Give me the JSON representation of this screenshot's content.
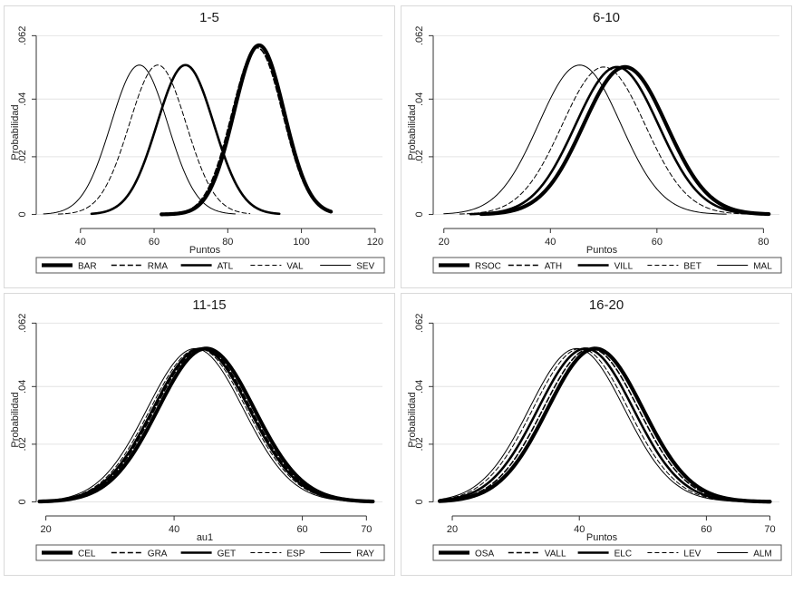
{
  "chart_data": [
    {
      "type": "line",
      "title": "1-5",
      "xlabel": "Puntos",
      "ylabel": "Probabilidad",
      "xlim": [
        28,
        122
      ],
      "ylim": [
        -0.003,
        0.064
      ],
      "xticks": [
        40,
        60,
        80,
        100,
        120
      ],
      "yticks": [
        0,
        0.02,
        0.04,
        0.062
      ],
      "ytick_labels": [
        "0",
        ".02",
        ".04",
        ".062"
      ],
      "grid": true,
      "legend": "bottom",
      "series": [
        {
          "name": "BAR",
          "mean": 88.5,
          "sd": 6.8,
          "x_range": [
            62,
            108
          ],
          "style": "thick-solid"
        },
        {
          "name": "RMA",
          "mean": 88,
          "sd": 6.9,
          "x_range": [
            62,
            107
          ],
          "style": "dashed"
        },
        {
          "name": "ATL",
          "mean": 68.5,
          "sd": 7.7,
          "x_range": [
            43,
            94
          ],
          "style": "medium-solid"
        },
        {
          "name": "VAL",
          "mean": 61,
          "sd": 7.7,
          "x_range": [
            34,
            86
          ],
          "style": "thin-dashed"
        },
        {
          "name": "SEV",
          "mean": 56,
          "sd": 7.7,
          "x_range": [
            30,
            82
          ],
          "style": "thin-solid"
        }
      ]
    },
    {
      "type": "line",
      "title": "6-10",
      "xlabel": "Puntos",
      "ylabel": "Probabilidad",
      "xlim": [
        18,
        83
      ],
      "ylim": [
        -0.003,
        0.064
      ],
      "xticks": [
        20,
        40,
        60,
        80
      ],
      "yticks": [
        0,
        0.02,
        0.04,
        0.062
      ],
      "ytick_labels": [
        "0",
        ".02",
        ".04",
        ".062"
      ],
      "grid": true,
      "legend": "bottom",
      "series": [
        {
          "name": "RSOC",
          "mean": 54,
          "sd": 7.8,
          "x_range": [
            27,
            81
          ],
          "style": "thick-solid"
        },
        {
          "name": "ATH",
          "mean": 52.5,
          "sd": 7.8,
          "x_range": [
            26,
            80
          ],
          "style": "dashed"
        },
        {
          "name": "VILL",
          "mean": 52.5,
          "sd": 7.8,
          "x_range": [
            25,
            79
          ],
          "style": "medium-solid"
        },
        {
          "name": "BET",
          "mean": 50,
          "sd": 7.8,
          "x_range": [
            23,
            77
          ],
          "style": "thin-dashed"
        },
        {
          "name": "MAL",
          "mean": 45.5,
          "sd": 7.7,
          "x_range": [
            20,
            73
          ],
          "style": "thin-solid"
        }
      ]
    },
    {
      "type": "line",
      "title": "11-15",
      "xlabel": "au1",
      "ylabel": "Probabilidad",
      "xlim": [
        18.5,
        72.5
      ],
      "ylim": [
        -0.003,
        0.064
      ],
      "xticks": [
        20,
        40,
        60,
        70
      ],
      "yticks": [
        0,
        0.02,
        0.04,
        0.062
      ],
      "ytick_labels": [
        "0",
        ".02",
        ".04",
        ".062"
      ],
      "grid": true,
      "legend": "bottom",
      "series": [
        {
          "name": "CEL",
          "mean": 45,
          "sd": 7.5,
          "x_range": [
            19,
            71
          ],
          "style": "thick-solid"
        },
        {
          "name": "GRA",
          "mean": 44.5,
          "sd": 7.5,
          "x_range": [
            19,
            71
          ],
          "style": "dashed"
        },
        {
          "name": "GET",
          "mean": 44.2,
          "sd": 7.5,
          "x_range": [
            19,
            71
          ],
          "style": "medium-solid"
        },
        {
          "name": "ESP",
          "mean": 43.8,
          "sd": 7.5,
          "x_range": [
            19,
            71
          ],
          "style": "thin-dashed"
        },
        {
          "name": "RAY",
          "mean": 43.3,
          "sd": 7.5,
          "x_range": [
            19,
            71
          ],
          "style": "thin-solid"
        }
      ]
    },
    {
      "type": "line",
      "title": "16-20",
      "xlabel": "Puntos",
      "ylabel": "Probabilidad",
      "xlim": [
        17,
        71.5
      ],
      "ylim": [
        -0.003,
        0.064
      ],
      "xticks": [
        20,
        40,
        60,
        70
      ],
      "yticks": [
        0,
        0.02,
        0.04,
        0.062
      ],
      "ytick_labels": [
        "0",
        ".02",
        ".04",
        ".062"
      ],
      "grid": true,
      "legend": "bottom",
      "series": [
        {
          "name": "OSA",
          "mean": 42.5,
          "sd": 7.5,
          "x_range": [
            18,
            70
          ],
          "style": "thick-solid"
        },
        {
          "name": "VALL",
          "mean": 41.8,
          "sd": 7.5,
          "x_range": [
            18,
            70
          ],
          "style": "dashed"
        },
        {
          "name": "ELC",
          "mean": 41,
          "sd": 7.5,
          "x_range": [
            18,
            70
          ],
          "style": "medium-solid"
        },
        {
          "name": "LEV",
          "mean": 40.2,
          "sd": 7.5,
          "x_range": [
            18,
            70
          ],
          "style": "thin-dashed"
        },
        {
          "name": "ALM",
          "mean": 39.6,
          "sd": 7.5,
          "x_range": [
            18,
            70
          ],
          "style": "thin-solid"
        }
      ]
    }
  ]
}
